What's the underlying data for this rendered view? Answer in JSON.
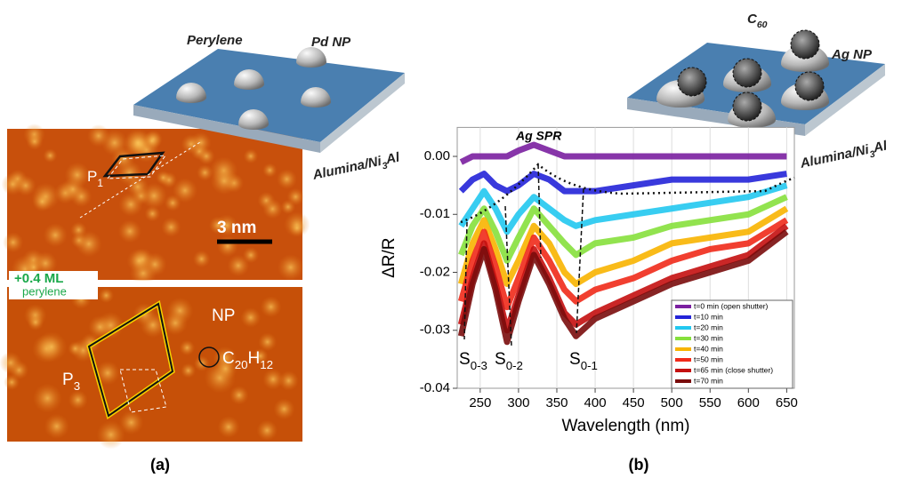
{
  "panel_a": {
    "label": "(a)",
    "schematic": {
      "molecule_label": "Perylene",
      "particle_label": "Pd NP",
      "support_label": [
        "Alumina/Ni",
        "3",
        "Al"
      ]
    },
    "stm_top": {
      "cell_label": [
        "P",
        "1"
      ],
      "scale_label": "3 nm"
    },
    "coverage": {
      "amount": "+0.4 ML",
      "molecule": "perylene"
    },
    "stm_bottom": {
      "particle_label": "NP",
      "formula": [
        "C",
        "20",
        "H",
        "12"
      ],
      "cell_label": [
        "P",
        "3"
      ]
    }
  },
  "panel_b": {
    "label": "(b)",
    "schematic": {
      "molecule_label": [
        "C",
        "60"
      ],
      "particle_label": "Ag NP",
      "support_label": [
        "Alumina/Ni",
        "3",
        "Al"
      ]
    }
  },
  "chart_data": {
    "type": "line",
    "x_label": "Wavelength (nm)",
    "y_label": "ΔR/R",
    "x": [
      225,
      240,
      255,
      270,
      285,
      300,
      320,
      340,
      360,
      375,
      400,
      450,
      500,
      550,
      600,
      650
    ],
    "series": [
      {
        "name": "t=0 min (open shutter)",
        "color": "#7a1fa0",
        "values": [
          -0.001,
          0,
          0,
          0,
          0,
          0.001,
          0.002,
          0.001,
          0,
          0,
          0,
          0,
          0,
          0,
          0,
          0
        ]
      },
      {
        "name": "t=10 min",
        "color": "#2424d8",
        "values": [
          -0.006,
          -0.004,
          -0.003,
          -0.005,
          -0.006,
          -0.005,
          -0.003,
          -0.004,
          -0.006,
          -0.006,
          -0.006,
          -0.005,
          -0.004,
          -0.004,
          -0.004,
          -0.003
        ]
      },
      {
        "name": "t=20 min",
        "color": "#22c8f0",
        "values": [
          -0.012,
          -0.009,
          -0.006,
          -0.009,
          -0.013,
          -0.01,
          -0.007,
          -0.009,
          -0.011,
          -0.012,
          -0.011,
          -0.01,
          -0.009,
          -0.008,
          -0.007,
          -0.005
        ]
      },
      {
        "name": "t=30 min",
        "color": "#86e03c",
        "values": [
          -0.017,
          -0.012,
          -0.009,
          -0.013,
          -0.018,
          -0.014,
          -0.009,
          -0.012,
          -0.015,
          -0.017,
          -0.015,
          -0.014,
          -0.012,
          -0.011,
          -0.01,
          -0.007
        ]
      },
      {
        "name": "t=40 min",
        "color": "#f8b400",
        "values": [
          -0.022,
          -0.015,
          -0.011,
          -0.016,
          -0.022,
          -0.018,
          -0.012,
          -0.015,
          -0.02,
          -0.022,
          -0.02,
          -0.018,
          -0.015,
          -0.014,
          -0.013,
          -0.009
        ]
      },
      {
        "name": "t=50 min",
        "color": "#f02a1a",
        "values": [
          -0.025,
          -0.018,
          -0.013,
          -0.019,
          -0.026,
          -0.021,
          -0.014,
          -0.018,
          -0.023,
          -0.025,
          -0.023,
          -0.021,
          -0.018,
          -0.016,
          -0.015,
          -0.011
        ]
      },
      {
        "name": "t=65 min (close shutter)",
        "color": "#c41010",
        "values": [
          -0.029,
          -0.021,
          -0.015,
          -0.022,
          -0.03,
          -0.024,
          -0.016,
          -0.021,
          -0.027,
          -0.029,
          -0.027,
          -0.024,
          -0.021,
          -0.019,
          -0.017,
          -0.012
        ]
      },
      {
        "name": "t=70 min",
        "color": "#7a0c0c",
        "values": [
          -0.031,
          -0.022,
          -0.016,
          -0.023,
          -0.032,
          -0.025,
          -0.017,
          -0.022,
          -0.028,
          -0.031,
          -0.028,
          -0.025,
          -0.022,
          -0.02,
          -0.018,
          -0.013
        ]
      }
    ],
    "xlim": [
      220,
      660
    ],
    "ylim": [
      -0.04,
      0.005
    ],
    "xticks": [
      250,
      300,
      350,
      400,
      450,
      500,
      550,
      600,
      650
    ],
    "yticks": [
      {
        "value": 0,
        "label": "0.00"
      },
      {
        "value": -0.01,
        "label": "-0.01"
      },
      {
        "value": -0.02,
        "label": "-0.02"
      },
      {
        "value": -0.03,
        "label": "-0.03"
      },
      {
        "value": -0.04,
        "label": "-0.04"
      }
    ],
    "grid": true,
    "legend": "lower right",
    "annotations": [
      {
        "text": "Ag SPR"
      },
      {
        "parts": [
          "S",
          "0-3"
        ]
      },
      {
        "parts": [
          "S",
          "0-2"
        ]
      },
      {
        "parts": [
          "S",
          "0-1"
        ]
      }
    ]
  }
}
